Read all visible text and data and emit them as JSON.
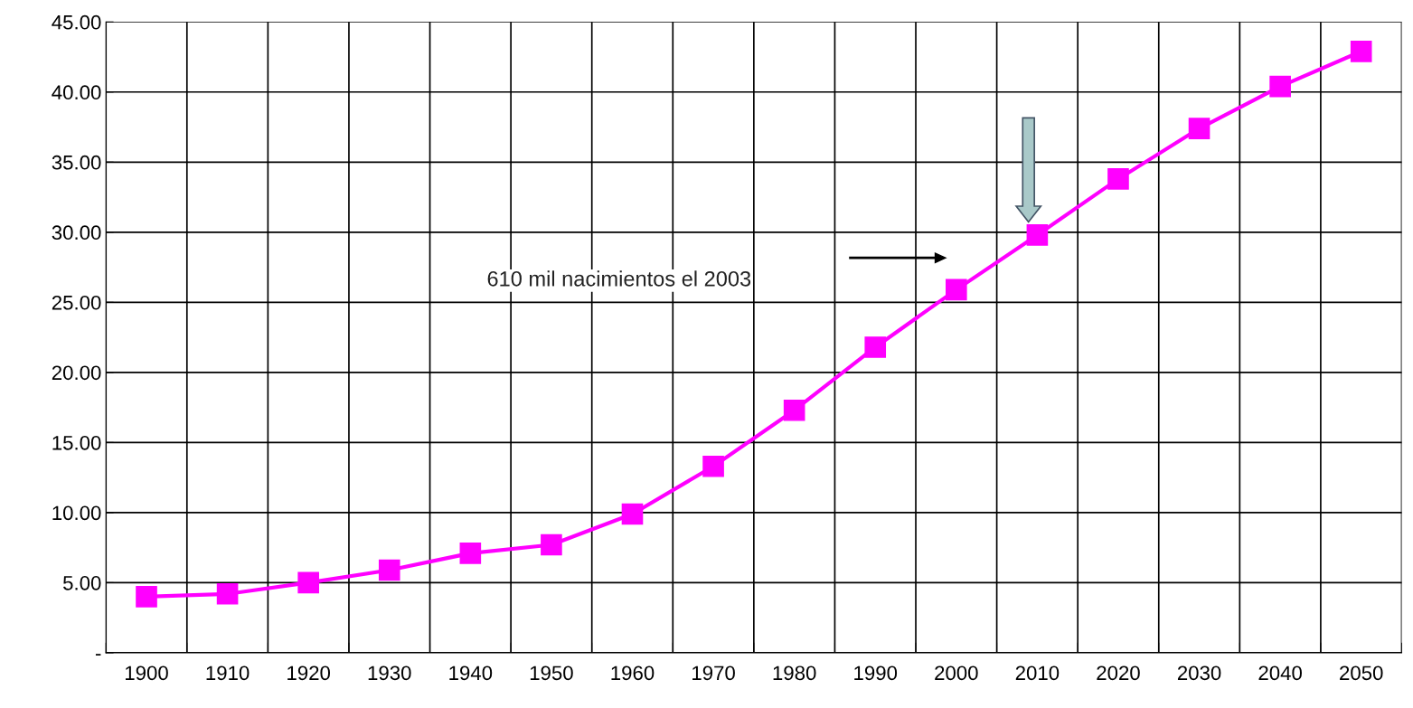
{
  "chart_data": {
    "type": "line",
    "categories": [
      "1900",
      "1910",
      "1920",
      "1930",
      "1940",
      "1950",
      "1960",
      "1970",
      "1980",
      "1990",
      "2000",
      "2010",
      "2020",
      "2030",
      "2040",
      "2050"
    ],
    "series": [
      {
        "color": "#ff00ff",
        "values": [
          4.0,
          4.2,
          5.0,
          5.9,
          7.1,
          7.7,
          9.9,
          13.3,
          17.3,
          21.8,
          25.9,
          29.8,
          33.8,
          37.4,
          40.4,
          42.9
        ]
      }
    ],
    "ylim": [
      0,
      45
    ],
    "yticks": [
      {
        "value": 0,
        "label": "-"
      },
      {
        "value": 5,
        "label": "5.00"
      },
      {
        "value": 10,
        "label": "10.00"
      },
      {
        "value": 15,
        "label": "15.00"
      },
      {
        "value": 20,
        "label": "20.00"
      },
      {
        "value": 25,
        "label": "25.00"
      },
      {
        "value": 30,
        "label": "30.00"
      },
      {
        "value": 35,
        "label": "35.00"
      },
      {
        "value": 40,
        "label": "40.00"
      },
      {
        "value": 45,
        "label": "45.00"
      }
    ],
    "annotations": [
      "610 mil nacimientos el 2003"
    ],
    "grid": true,
    "legend": false,
    "marker": "square",
    "line_style": "solid"
  }
}
